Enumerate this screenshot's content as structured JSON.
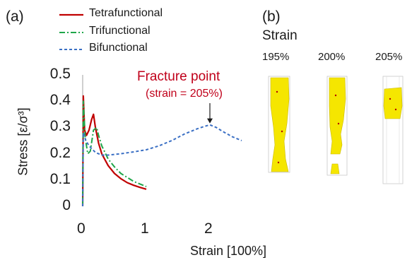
{
  "panel_a": {
    "label": "(a)"
  },
  "panel_b": {
    "label": "(b)",
    "title": "Strain",
    "snapshots": [
      {
        "label": "195%"
      },
      {
        "label": "200%"
      },
      {
        "label": "205%"
      }
    ]
  },
  "colors": {
    "tetrafunctional": "#c00000",
    "trifunctional": "#1fa64a",
    "bifunctional": "#3a6fc4",
    "sample": "#f5e600",
    "annotation": "#c0001a"
  },
  "chart_data": {
    "type": "line",
    "xlabel": "Strain [100%]",
    "ylabel": "Stress [ε/σ³]",
    "xlim": [
      0,
      2.5
    ],
    "ylim": [
      0,
      0.5
    ],
    "x_ticks": [
      0,
      1,
      2
    ],
    "y_ticks": [
      0,
      0.1,
      0.2,
      0.3,
      0.4,
      0.5
    ],
    "legend_position": "top",
    "series": [
      {
        "name": "Tetrafunctional",
        "line_style": "solid",
        "x": [
          0,
          0.01,
          0.03,
          0.06,
          0.1,
          0.14,
          0.17,
          0.2,
          0.25,
          0.3,
          0.4,
          0.5,
          0.6,
          0.7,
          0.8,
          0.9,
          1.0
        ],
        "y": [
          0.0,
          0.42,
          0.29,
          0.27,
          0.29,
          0.33,
          0.35,
          0.3,
          0.24,
          0.2,
          0.155,
          0.125,
          0.105,
          0.09,
          0.08,
          0.072,
          0.065
        ]
      },
      {
        "name": "Trifunctional",
        "line_style": "dash-dot",
        "x": [
          0,
          0.01,
          0.04,
          0.08,
          0.12,
          0.17,
          0.22,
          0.25,
          0.3,
          0.4,
          0.5,
          0.6,
          0.7,
          0.8,
          0.9,
          1.0
        ],
        "y": [
          0.0,
          0.4,
          0.26,
          0.2,
          0.21,
          0.29,
          0.3,
          0.27,
          0.23,
          0.18,
          0.15,
          0.125,
          0.11,
          0.095,
          0.085,
          0.075
        ]
      },
      {
        "name": "Bifunctional",
        "line_style": "dashed",
        "x": [
          0,
          0.01,
          0.05,
          0.1,
          0.2,
          0.3,
          0.4,
          0.6,
          0.8,
          1.0,
          1.2,
          1.4,
          1.6,
          1.8,
          1.9,
          2.0,
          2.1,
          2.2,
          2.35,
          2.5
        ],
        "y": [
          0.0,
          0.28,
          0.25,
          0.23,
          0.205,
          0.195,
          0.195,
          0.2,
          0.207,
          0.215,
          0.23,
          0.25,
          0.275,
          0.295,
          0.303,
          0.31,
          0.3,
          0.285,
          0.265,
          0.25
        ]
      }
    ],
    "annotations": [
      {
        "text": "Fracture point",
        "subtext": "(strain = 205%)",
        "x": 2.0,
        "y": 0.31
      }
    ]
  }
}
